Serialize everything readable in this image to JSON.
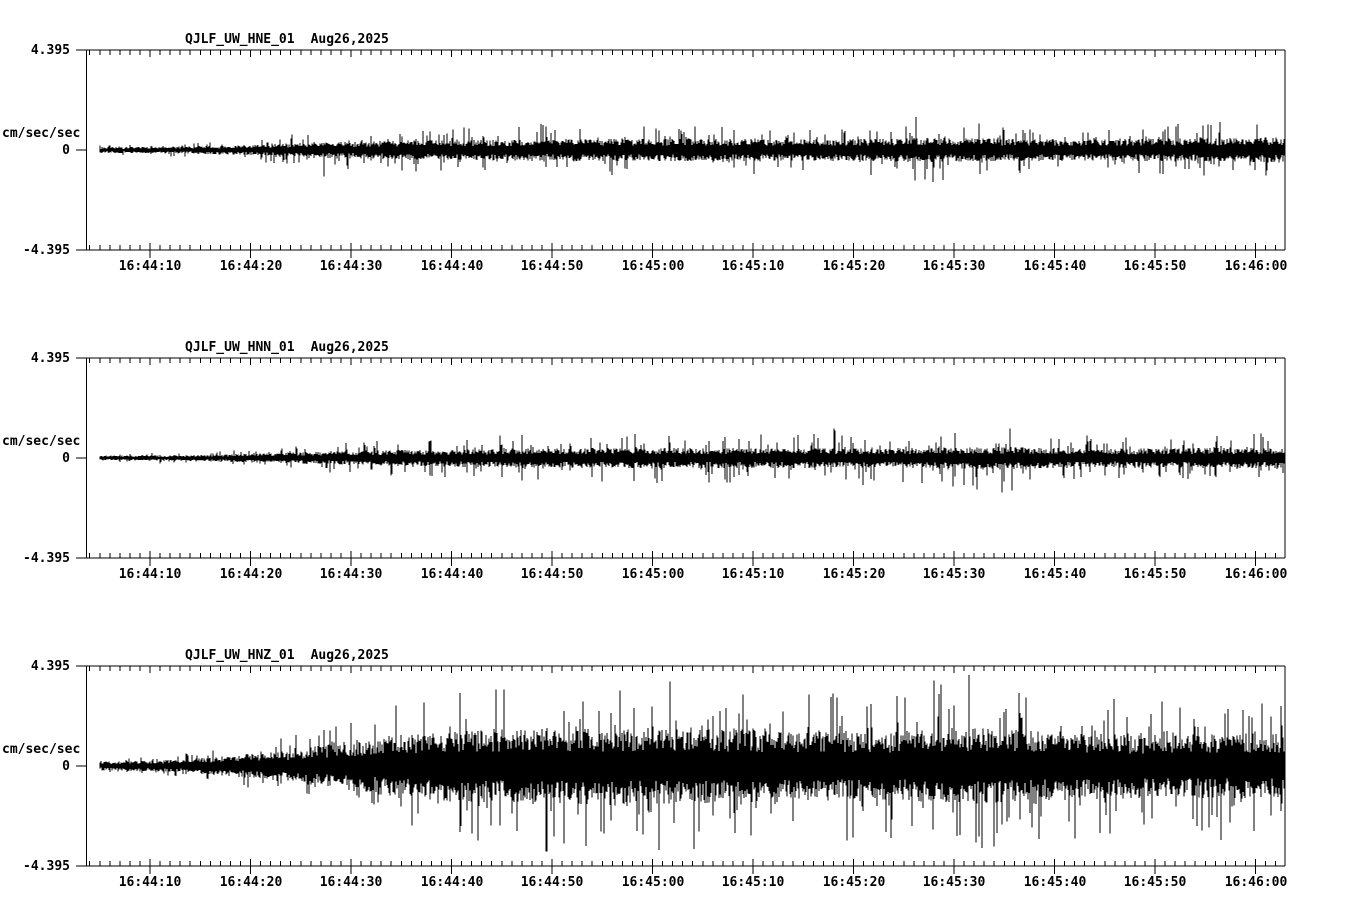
{
  "page": {
    "background": "#ffffff",
    "trace_color": "#000000"
  },
  "chart_data": [
    {
      "type": "line",
      "subtype": "seismogram-trace",
      "title": "QJLF_UW_HNE_01",
      "date_label": "Aug26,2025",
      "ylabel": "cm/sec/sec",
      "y_tick_labels": {
        "max": "4.395",
        "zero": "0",
        "min": "-4.395"
      },
      "ylim": [
        -4.395,
        4.395
      ],
      "x_tick_labels": [
        "16:44:10",
        "16:44:20",
        "16:44:30",
        "16:44:40",
        "16:44:50",
        "16:45:00",
        "16:45:10",
        "16:45:20",
        "16:45:30",
        "16:45:40",
        "16:45:50",
        "16:46:00"
      ],
      "x_major_interval_sec": 10,
      "x_minor_interval_sec": 1,
      "grid": false,
      "seed": 20250826,
      "envelope": {
        "t": [
          -5,
          3,
          10,
          15,
          16.5,
          20,
          25,
          33,
          37,
          43,
          55,
          65,
          74,
          76,
          80,
          86,
          92,
          100,
          108,
          111,
          113
        ],
        "band": [
          0.1,
          0.12,
          0.17,
          0.24,
          0.26,
          0.28,
          0.32,
          0.34,
          0.36,
          0.38,
          0.38,
          0.36,
          0.38,
          0.42,
          0.4,
          0.38,
          0.36,
          0.38,
          0.4,
          0.42,
          0.42
        ],
        "peak": [
          0.22,
          0.3,
          0.45,
          0.75,
          1.3,
          0.85,
          0.95,
          1.05,
          1.3,
          1.1,
          1.1,
          1.0,
          1.15,
          1.75,
          1.3,
          1.05,
          1.0,
          1.1,
          1.3,
          1.55,
          1.2
        ]
      }
    },
    {
      "type": "line",
      "subtype": "seismogram-trace",
      "title": "QJLF_UW_HNN_01",
      "date_label": "Aug26,2025",
      "ylabel": "cm/sec/sec",
      "y_tick_labels": {
        "max": "4.395",
        "zero": "0",
        "min": "-4.395"
      },
      "ylim": [
        -4.395,
        4.395
      ],
      "x_tick_labels": [
        "16:44:10",
        "16:44:20",
        "16:44:30",
        "16:44:40",
        "16:44:50",
        "16:45:00",
        "16:45:10",
        "16:45:20",
        "16:45:30",
        "16:45:40",
        "16:45:50",
        "16:46:00"
      ],
      "x_major_interval_sec": 10,
      "x_minor_interval_sec": 1,
      "grid": false,
      "seed": 48151623,
      "envelope": {
        "t": [
          -5,
          3,
          10,
          18,
          25,
          32,
          40,
          48,
          56,
          62,
          68,
          74,
          80,
          85,
          90,
          96,
          103,
          108,
          113
        ],
        "band": [
          0.08,
          0.1,
          0.15,
          0.22,
          0.28,
          0.3,
          0.33,
          0.34,
          0.35,
          0.34,
          0.33,
          0.33,
          0.36,
          0.38,
          0.34,
          0.32,
          0.34,
          0.35,
          0.35
        ],
        "peak": [
          0.18,
          0.25,
          0.4,
          0.65,
          0.85,
          0.95,
          1.05,
          1.1,
          1.15,
          1.0,
          1.4,
          1.1,
          1.3,
          1.55,
          1.1,
          1.0,
          1.1,
          1.25,
          1.15
        ]
      }
    },
    {
      "type": "line",
      "subtype": "seismogram-trace",
      "title": "QJLF_UW_HNZ_01",
      "date_label": "Aug26,2025",
      "ylabel": "cm/sec/sec",
      "y_tick_labels": {
        "max": "4.395",
        "zero": "0",
        "min": "-4.395"
      },
      "ylim": [
        -4.395,
        4.395
      ],
      "x_tick_labels": [
        "16:44:10",
        "16:44:20",
        "16:44:30",
        "16:44:40",
        "16:44:50",
        "16:45:00",
        "16:45:10",
        "16:45:20",
        "16:45:30",
        "16:45:40",
        "16:45:50",
        "16:46:00"
      ],
      "x_major_interval_sec": 10,
      "x_minor_interval_sec": 1,
      "grid": false,
      "seed": 31337,
      "envelope": {
        "t": [
          -5,
          2,
          8,
          14,
          18,
          22,
          26,
          30,
          34,
          38,
          41,
          44,
          48,
          52,
          58,
          64,
          70,
          75,
          80,
          84,
          90,
          96,
          102,
          106,
          110,
          113
        ],
        "band": [
          0.15,
          0.2,
          0.35,
          0.55,
          0.75,
          0.95,
          1.1,
          1.2,
          1.25,
          1.3,
          1.3,
          1.28,
          1.3,
          1.28,
          1.25,
          1.22,
          1.2,
          1.18,
          1.3,
          1.25,
          1.18,
          1.12,
          1.05,
          1.1,
          1.1,
          1.05
        ],
        "peak": [
          0.3,
          0.45,
          0.85,
          1.4,
          2.0,
          2.5,
          2.9,
          3.2,
          3.4,
          3.6,
          4.25,
          3.5,
          3.6,
          3.9,
          3.6,
          3.4,
          3.3,
          3.2,
          4.3,
          3.55,
          3.3,
          3.0,
          2.8,
          3.6,
          2.9,
          2.6
        ]
      }
    }
  ]
}
